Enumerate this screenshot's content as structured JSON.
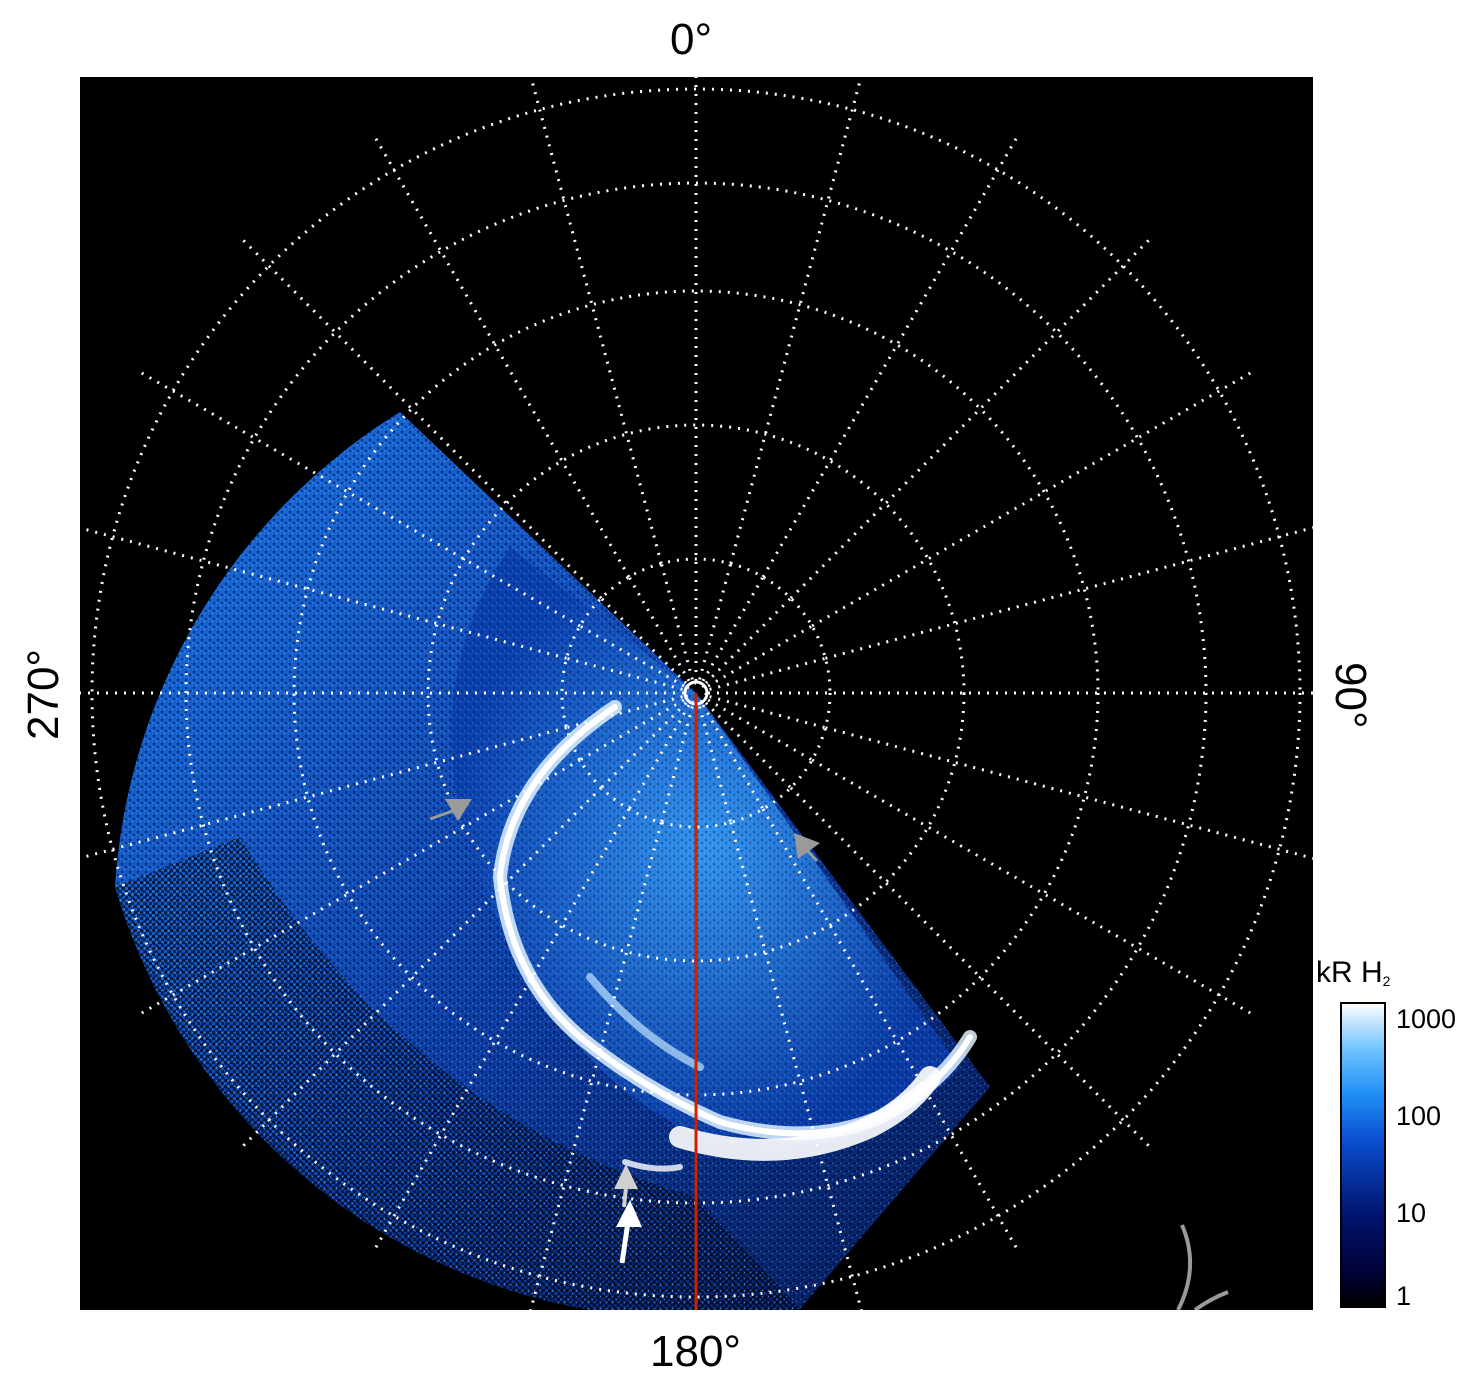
{
  "plot": {
    "center_value_label": "",
    "longitude_labels": {
      "top": "0°",
      "right": "90°",
      "bottom": "180°",
      "left": "270°"
    },
    "central_meridian_color": "#cc2200",
    "grid_color": "#ffffff",
    "arrow_colors": {
      "gray": "#9a9a9a",
      "light": "#d0d0d0",
      "white": "#ffffff"
    }
  },
  "colorbar": {
    "title": "kR H",
    "title_subscript": "2",
    "ticks": [
      "1000",
      "100",
      "10",
      "1"
    ],
    "scale": "log",
    "colors": [
      "#000000",
      "#00136e",
      "#1f8ff5",
      "#ffffff"
    ]
  }
}
